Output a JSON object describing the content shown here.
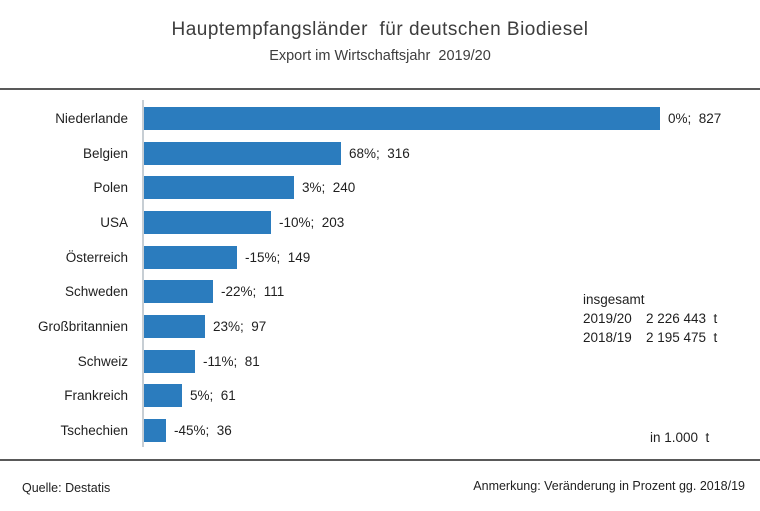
{
  "header": {
    "title": "Hauptempfangsländer  für deutschen Biodiesel",
    "subtitle": "Export im Wirtschaftsjahr  2019/20"
  },
  "chart_data": {
    "type": "bar",
    "orientation": "horizontal",
    "title": "Hauptempfangsländer  für deutschen Biodiesel",
    "subtitle": "Export im Wirtschaftsjahr  2019/20",
    "categories": [
      "Niederlande",
      "Belgien",
      "Polen",
      "USA",
      "Österreich",
      "Schweden",
      "Großbritannien",
      "Schweiz",
      "Frankreich",
      "Tschechien"
    ],
    "values": [
      827,
      316,
      240,
      203,
      149,
      111,
      97,
      81,
      61,
      36
    ],
    "change_pct": [
      "0%",
      "68%",
      "3%",
      "-10%",
      "-15%",
      "-22%",
      "23%",
      "-11%",
      "5%",
      "-45%"
    ],
    "data_labels": [
      "0%;  827",
      "68%;  316",
      "3%;  240",
      "-10%;  203",
      "-15%;  149",
      "-22%;  111",
      "23%;  97",
      "-11%;  81",
      "5%;  61",
      "-45%;  36"
    ],
    "xlabel": "",
    "ylabel": "",
    "xlim": [
      0,
      830
    ],
    "grid": false,
    "legend": "none",
    "unit": "in 1.000  t",
    "bar_color": "#2b7cbe"
  },
  "totals": {
    "heading": "insgesamt",
    "rows": [
      {
        "period": "2019/20",
        "value": "2 226 443  t"
      },
      {
        "period": "2018/19",
        "value": "2 195 475  t"
      }
    ]
  },
  "unit_note": "in 1.000  t",
  "footer": {
    "source": "Quelle: Destatis",
    "note": "Anmerkung: Veränderung in Prozent gg. 2018/19"
  },
  "colors": {
    "bar": "#2b7cbe",
    "rule": "#595959",
    "axis": "#c7ced4",
    "text": "#1f1f1f"
  }
}
